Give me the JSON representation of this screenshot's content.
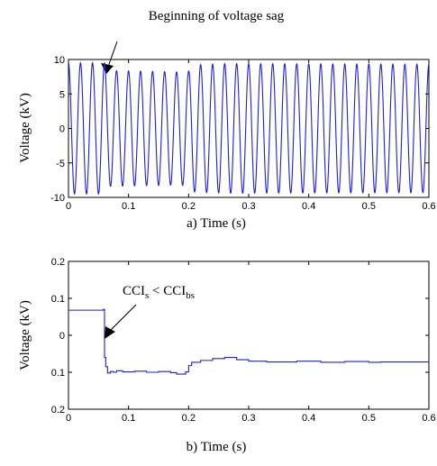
{
  "chart_data": [
    {
      "type": "line",
      "panel": "a",
      "title": "",
      "xlabel": "a) Time (s)",
      "ylabel": "Voltage (kV)",
      "xlim": [
        0,
        0.6
      ],
      "ylim": [
        -10,
        10
      ],
      "xticks": [
        "0",
        "0.1",
        "0.2",
        "0.3",
        "0.4",
        "0.5",
        "0.6"
      ],
      "yticks": [
        "10",
        "5",
        "0",
        "-5",
        "-10"
      ],
      "grid": false,
      "annotation": "Beginning of voltage sag",
      "annotation_target": {
        "x": 0.06,
        "y": 8.0
      },
      "signal": {
        "kind": "sinusoid",
        "frequency_hz": 50,
        "amplitude_kv": [
          {
            "t": 0.0,
            "amp": 9.5
          },
          {
            "t": 0.06,
            "amp": 9.5
          },
          {
            "t": 0.065,
            "amp": 8.4
          },
          {
            "t": 0.18,
            "amp": 8.2
          },
          {
            "t": 0.2,
            "amp": 8.3
          },
          {
            "t": 0.205,
            "amp": 9.2
          },
          {
            "t": 0.26,
            "amp": 9.4
          },
          {
            "t": 0.6,
            "amp": 9.3
          }
        ]
      },
      "color": "#1f1fd6"
    },
    {
      "type": "line",
      "panel": "b",
      "title": "",
      "xlabel": "b) Time (s)",
      "ylabel": "Voltage (kV)",
      "xlim": [
        0,
        0.6
      ],
      "ylim": [
        -0.2,
        0.2
      ],
      "xticks": [
        "0",
        "0.1",
        "0.2",
        "0.3",
        "0.4",
        "0.5",
        "0.6"
      ],
      "yticks": [
        "0.2",
        "0.1",
        "0",
        "0.1",
        "0.2"
      ],
      "grid": false,
      "annotation": {
        "main": "CCI",
        "sub1": "s",
        "op": " < CCI",
        "sub2": "bs"
      },
      "annotation_target": {
        "x": 0.06,
        "y": -0.1
      },
      "x": [
        0,
        0.058,
        0.058,
        0.06,
        0.06,
        0.062,
        0.062,
        0.065,
        0.065,
        0.07,
        0.07,
        0.075,
        0.075,
        0.08,
        0.08,
        0.09,
        0.09,
        0.11,
        0.11,
        0.13,
        0.13,
        0.15,
        0.15,
        0.17,
        0.17,
        0.18,
        0.18,
        0.195,
        0.195,
        0.2,
        0.2,
        0.205,
        0.205,
        0.22,
        0.22,
        0.24,
        0.24,
        0.26,
        0.26,
        0.28,
        0.28,
        0.3,
        0.3,
        0.33,
        0.33,
        0.38,
        0.38,
        0.42,
        0.42,
        0.46,
        0.46,
        0.5,
        0.5,
        0.52,
        0.52,
        0.6
      ],
      "y": [
        0.068,
        0.068,
        0.07,
        0.07,
        -0.06,
        -0.06,
        -0.085,
        -0.085,
        -0.102,
        -0.102,
        -0.098,
        -0.098,
        -0.1,
        -0.1,
        -0.096,
        -0.096,
        -0.099,
        -0.099,
        -0.097,
        -0.097,
        -0.1,
        -0.1,
        -0.098,
        -0.098,
        -0.101,
        -0.101,
        -0.105,
        -0.105,
        -0.099,
        -0.099,
        -0.082,
        -0.082,
        -0.073,
        -0.073,
        -0.068,
        -0.068,
        -0.063,
        -0.063,
        -0.06,
        -0.06,
        -0.066,
        -0.066,
        -0.07,
        -0.07,
        -0.072,
        -0.072,
        -0.07,
        -0.07,
        -0.073,
        -0.073,
        -0.071,
        -0.071,
        -0.073,
        -0.073,
        -0.072,
        -0.072
      ],
      "color": "#1f1fd6"
    }
  ]
}
